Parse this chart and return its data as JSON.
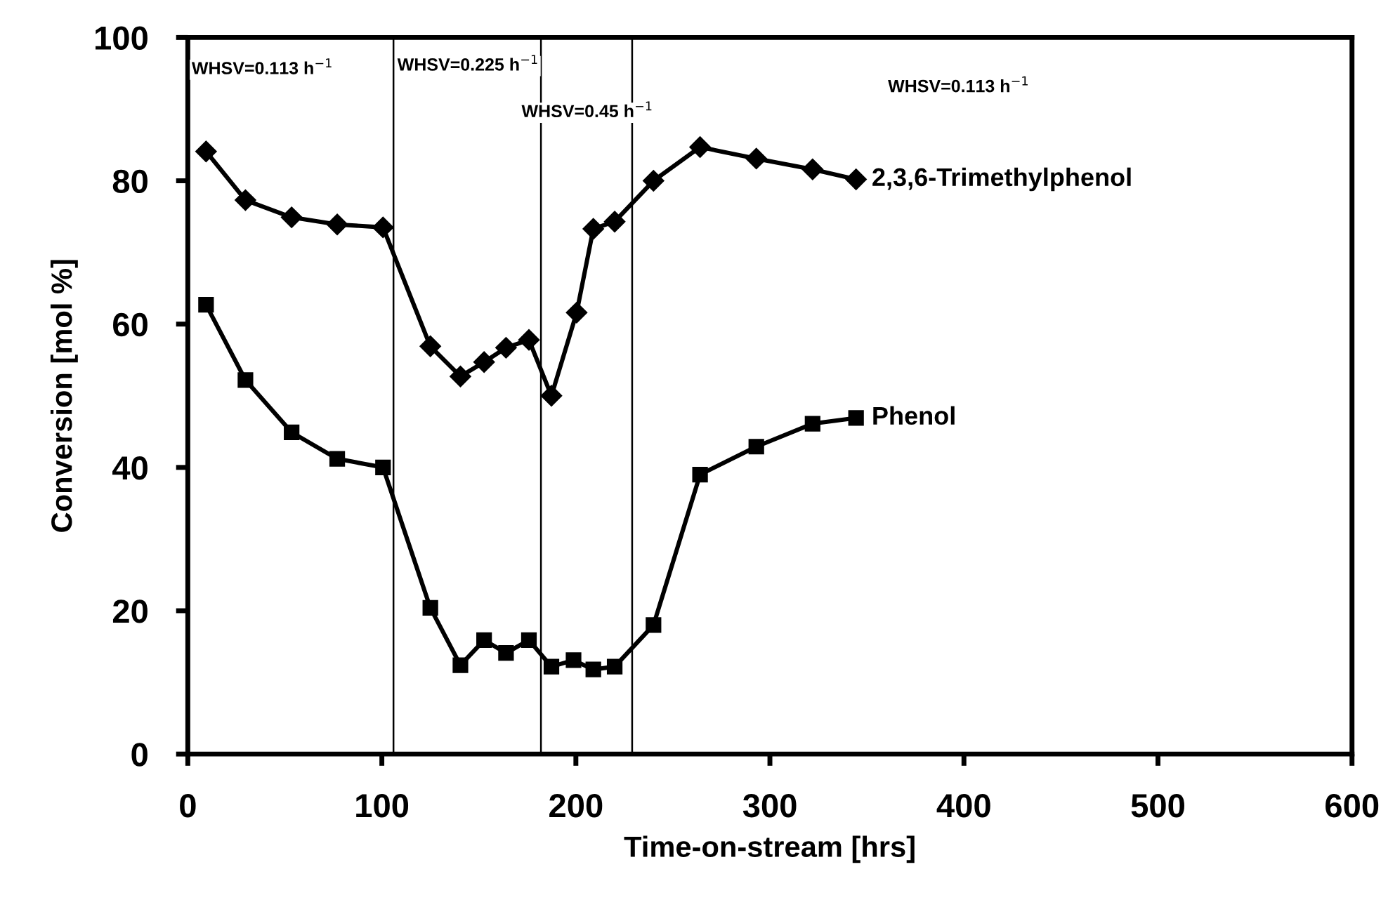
{
  "chart_data": {
    "type": "line",
    "xlabel": "Time-on-stream [hrs]",
    "ylabel": "Conversion [mol %]",
    "xlim": [
      0,
      600
    ],
    "xticks": [
      0,
      100,
      200,
      300,
      400,
      500,
      600
    ],
    "ylim": [
      0,
      100
    ],
    "yticks": [
      0,
      20,
      40,
      60,
      80,
      100
    ],
    "grid": false,
    "legend": false,
    "line_style": "solid",
    "series": [
      {
        "name": "2,3,6-Trimethylphenol",
        "color": "#000000",
        "marker": "diamond",
        "x": [
          9.4,
          29.7,
          53.5,
          77,
          100.6,
          125,
          140.5,
          152.7,
          164,
          175.8,
          187.4,
          200.4,
          209,
          220,
          240,
          264,
          293,
          322,
          344.4
        ],
        "values": [
          84.1,
          77.3,
          74.9,
          73.9,
          73.5,
          56.9,
          52.7,
          54.7,
          56.7,
          57.8,
          50.0,
          61.6,
          73.3,
          74.3,
          80,
          84.7,
          83.1,
          81.6,
          80.2
        ]
      },
      {
        "name": "Phenol",
        "color": "#000000",
        "marker": "square",
        "x": [
          9.4,
          29.7,
          53.5,
          77,
          100.6,
          125,
          140.5,
          152.7,
          164,
          175.8,
          187.4,
          198.8,
          209,
          220,
          240,
          264,
          293,
          322,
          344.4
        ],
        "values": [
          62.7,
          52.2,
          44.9,
          41.2,
          40,
          20.4,
          12.4,
          15.9,
          14.1,
          15.9,
          12.2,
          13.1,
          11.8,
          12.2,
          18,
          39,
          42.9,
          46.1,
          46.9
        ]
      }
    ],
    "ref_lines": [
      {
        "axis": "x",
        "value": 106,
        "color": "#000000"
      },
      {
        "axis": "x",
        "value": 182,
        "color": "#000000"
      },
      {
        "axis": "x",
        "value": 229,
        "color": "#000000"
      }
    ],
    "annotations": [
      "WHSV=0.113 h$^{−1}$",
      "WHSV=0.225 h$^{−1}$",
      "WHSV=0.45 h$^{−1}$",
      "WHSV=0.113 h$^{−1}$"
    ]
  }
}
